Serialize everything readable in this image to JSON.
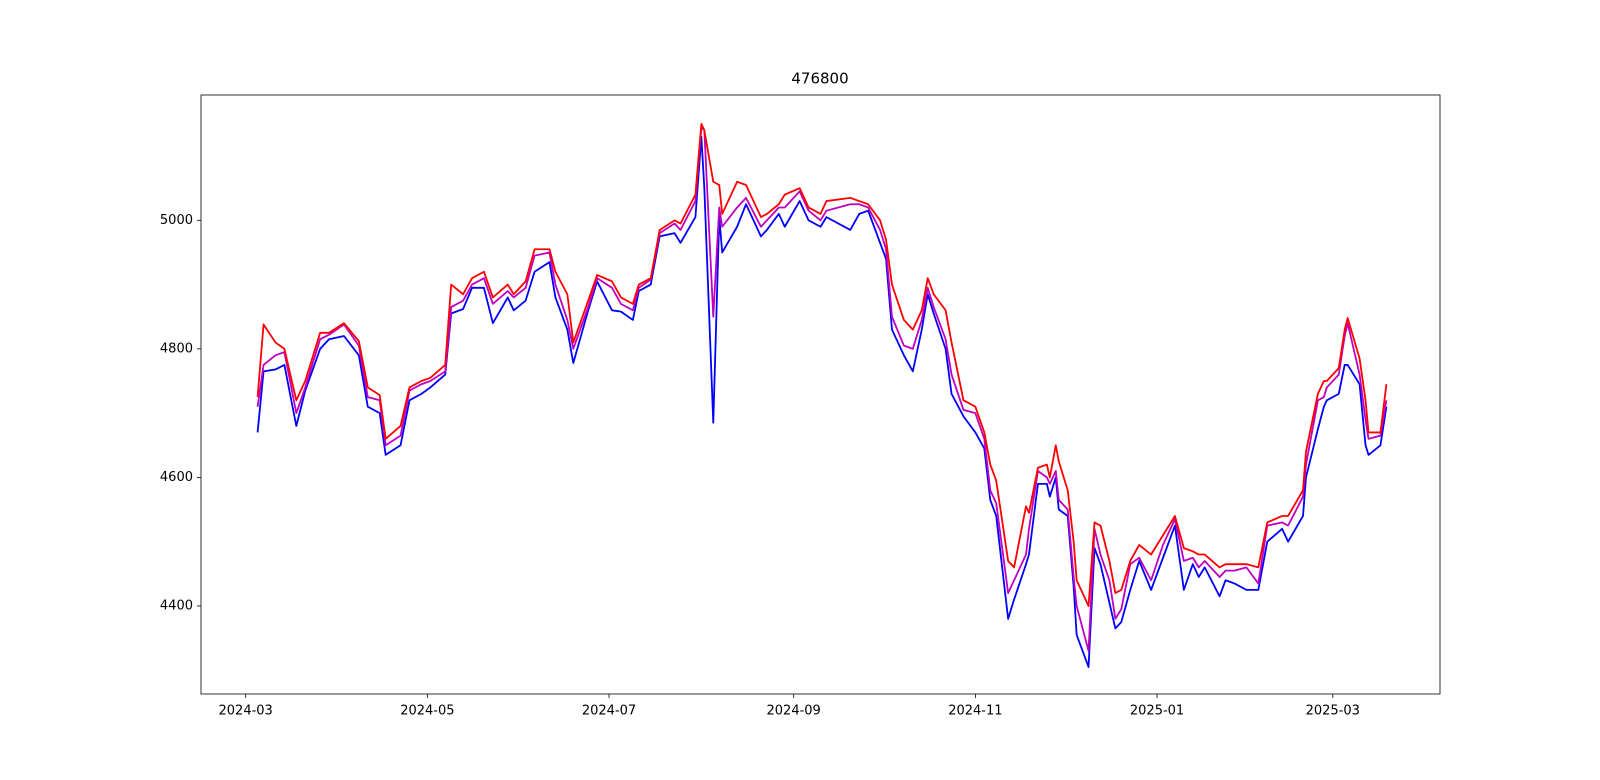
{
  "chart_data": {
    "type": "line",
    "title": "476800",
    "x": [
      "2024-03-05",
      "2024-03-07",
      "2024-03-11",
      "2024-03-14",
      "2024-03-18",
      "2024-03-21",
      "2024-03-26",
      "2024-03-29",
      "2024-04-03",
      "2024-04-08",
      "2024-04-11",
      "2024-04-15",
      "2024-04-17",
      "2024-04-22",
      "2024-04-25",
      "2024-04-29",
      "2024-05-02",
      "2024-05-07",
      "2024-05-09",
      "2024-05-13",
      "2024-05-16",
      "2024-05-20",
      "2024-05-23",
      "2024-05-28",
      "2024-05-30",
      "2024-06-03",
      "2024-06-06",
      "2024-06-11",
      "2024-06-13",
      "2024-06-17",
      "2024-06-19",
      "2024-06-24",
      "2024-06-27",
      "2024-07-02",
      "2024-07-05",
      "2024-07-09",
      "2024-07-11",
      "2024-07-15",
      "2024-07-18",
      "2024-07-23",
      "2024-07-25",
      "2024-07-30",
      "2024-08-01",
      "2024-08-02",
      "2024-08-05",
      "2024-08-07",
      "2024-08-08",
      "2024-08-13",
      "2024-08-16",
      "2024-08-21",
      "2024-08-23",
      "2024-08-27",
      "2024-08-29",
      "2024-09-03",
      "2024-09-06",
      "2024-09-10",
      "2024-09-12",
      "2024-09-20",
      "2024-09-23",
      "2024-09-26",
      "2024-09-30",
      "2024-10-02",
      "2024-10-04",
      "2024-10-08",
      "2024-10-11",
      "2024-10-14",
      "2024-10-16",
      "2024-10-18",
      "2024-10-22",
      "2024-10-24",
      "2024-10-28",
      "2024-11-01",
      "2024-11-04",
      "2024-11-06",
      "2024-11-08",
      "2024-11-12",
      "2024-11-14",
      "2024-11-18",
      "2024-11-19",
      "2024-11-22",
      "2024-11-25",
      "2024-11-26",
      "2024-11-28",
      "2024-11-29",
      "2024-12-02",
      "2024-12-04",
      "2024-12-05",
      "2024-12-09",
      "2024-12-11",
      "2024-12-13",
      "2024-12-16",
      "2024-12-18",
      "2024-12-20",
      "2024-12-23",
      "2024-12-26",
      "2024-12-30",
      "2025-01-03",
      "2025-01-07",
      "2025-01-10",
      "2025-01-13",
      "2025-01-15",
      "2025-01-17",
      "2025-01-22",
      "2025-01-24",
      "2025-01-27",
      "2025-01-31",
      "2025-02-04",
      "2025-02-07",
      "2025-02-12",
      "2025-02-14",
      "2025-02-19",
      "2025-02-20",
      "2025-02-24",
      "2025-02-26",
      "2025-02-27",
      "2025-03-03",
      "2025-03-05",
      "2025-03-06",
      "2025-03-10",
      "2025-03-12",
      "2025-03-13",
      "2025-03-17",
      "2025-03-19"
    ],
    "series": [
      {
        "color": "#0000ff",
        "values": [
          4670,
          4765,
          4768,
          4775,
          4680,
          4735,
          4800,
          4815,
          4820,
          4790,
          4710,
          4700,
          4635,
          4650,
          4720,
          4730,
          4740,
          4760,
          4855,
          4862,
          4895,
          4895,
          4840,
          4880,
          4860,
          4875,
          4920,
          4935,
          4880,
          4830,
          4778,
          4860,
          4905,
          4860,
          4858,
          4845,
          4890,
          4900,
          4975,
          4980,
          4965,
          5005,
          5130,
          5050,
          4685,
          5005,
          4950,
          4990,
          5025,
          4975,
          4985,
          5010,
          4990,
          5030,
          5000,
          4990,
          5005,
          4985,
          5010,
          5015,
          4965,
          4940,
          4830,
          4790,
          4765,
          4830,
          4885,
          4855,
          4800,
          4730,
          4695,
          4670,
          4645,
          4565,
          4540,
          4380,
          4410,
          4465,
          4480,
          4590,
          4590,
          4570,
          4600,
          4550,
          4540,
          4430,
          4355,
          4305,
          4490,
          4465,
          4405,
          4365,
          4375,
          4425,
          4470,
          4425,
          4475,
          4525,
          4425,
          4465,
          4445,
          4460,
          4415,
          4440,
          4435,
          4425,
          4425,
          4500,
          4520,
          4500,
          4540,
          4600,
          4675,
          4710,
          4720,
          4730,
          4775,
          4775,
          4745,
          4650,
          4635,
          4650,
          4710
        ]
      },
      {
        "color": "#bf00bf",
        "values": [
          4710,
          4775,
          4790,
          4795,
          4700,
          4740,
          4815,
          4822,
          4838,
          4805,
          4725,
          4720,
          4650,
          4665,
          4735,
          4745,
          4750,
          4765,
          4865,
          4875,
          4900,
          4910,
          4870,
          4890,
          4880,
          4895,
          4945,
          4950,
          4900,
          4845,
          4800,
          4865,
          4910,
          4895,
          4870,
          4860,
          4895,
          4908,
          4980,
          4995,
          4985,
          5030,
          5145,
          5140,
          4850,
          5020,
          4990,
          5020,
          5035,
          4990,
          5000,
          5020,
          5020,
          5045,
          5015,
          5000,
          5015,
          5025,
          5025,
          5020,
          4985,
          4955,
          4850,
          4805,
          4800,
          4845,
          4895,
          4865,
          4815,
          4760,
          4705,
          4700,
          4660,
          4580,
          4560,
          4420,
          4440,
          4480,
          4520,
          4610,
          4600,
          4590,
          4610,
          4565,
          4550,
          4445,
          4400,
          4330,
          4520,
          4480,
          4440,
          4380,
          4395,
          4465,
          4475,
          4440,
          4495,
          4535,
          4470,
          4475,
          4460,
          4470,
          4445,
          4455,
          4455,
          4460,
          4435,
          4525,
          4530,
          4525,
          4570,
          4620,
          4720,
          4725,
          4740,
          4760,
          4820,
          4840,
          4760,
          4690,
          4660,
          4665,
          4720
        ]
      },
      {
        "color": "#ff0000",
        "values": [
          4725,
          4838,
          4810,
          4800,
          4720,
          4750,
          4825,
          4825,
          4840,
          4812,
          4740,
          4728,
          4660,
          4680,
          4740,
          4750,
          4755,
          4775,
          4900,
          4885,
          4910,
          4920,
          4880,
          4900,
          4885,
          4905,
          4955,
          4955,
          4920,
          4885,
          4810,
          4875,
          4915,
          4905,
          4880,
          4870,
          4900,
          4910,
          4985,
          5000,
          4995,
          5040,
          5150,
          5140,
          5060,
          5055,
          5010,
          5060,
          5055,
          5005,
          5010,
          5025,
          5040,
          5050,
          5020,
          5010,
          5030,
          5035,
          5030,
          5025,
          5000,
          4970,
          4900,
          4845,
          4830,
          4860,
          4910,
          4885,
          4860,
          4810,
          4720,
          4710,
          4670,
          4620,
          4595,
          4470,
          4460,
          4555,
          4545,
          4615,
          4620,
          4600,
          4650,
          4625,
          4580,
          4500,
          4440,
          4400,
          4530,
          4525,
          4470,
          4420,
          4425,
          4470,
          4495,
          4480,
          4510,
          4540,
          4490,
          4485,
          4480,
          4480,
          4460,
          4465,
          4465,
          4465,
          4460,
          4530,
          4540,
          4540,
          4580,
          4640,
          4730,
          4750,
          4750,
          4770,
          4830,
          4848,
          4785,
          4720,
          4670,
          4670,
          4745
        ]
      }
    ],
    "xlim": [
      "2024-02-15",
      "2025-04-06"
    ],
    "xticks": [
      "2024-03",
      "2024-05",
      "2024-07",
      "2024-09",
      "2024-11",
      "2025-01",
      "2025-03"
    ],
    "ylim": [
      4263,
      5195
    ],
    "yticks": [
      4400,
      4600,
      4800,
      5000
    ],
    "grid": false
  }
}
